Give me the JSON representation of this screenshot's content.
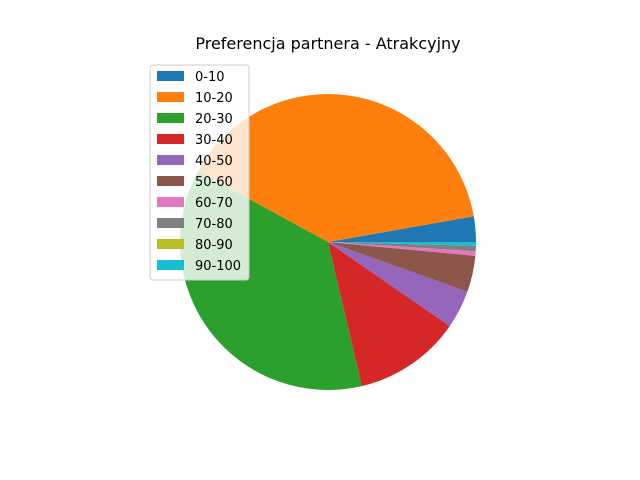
{
  "chart_data": {
    "type": "pie",
    "title": "Preferencja partnera - Atrakcyjny",
    "categories": [
      "0-10",
      "10-20",
      "20-30",
      "30-40",
      "40-50",
      "50-60",
      "60-70",
      "70-80",
      "80-90",
      "90-100"
    ],
    "values": [
      2.8,
      39.6,
      36.9,
      11.8,
      4.2,
      4.0,
      0.5,
      0.6,
      0.0,
      0.4
    ],
    "colors": [
      "#1f77b4",
      "#ff7f0e",
      "#2ca02c",
      "#d62728",
      "#9467bd",
      "#8c564b",
      "#e377c2",
      "#7f7f7f",
      "#bcbd22",
      "#17becf"
    ],
    "start_angle_deg": 0,
    "direction": "counterclockwise",
    "legend_position": "upper-left"
  }
}
